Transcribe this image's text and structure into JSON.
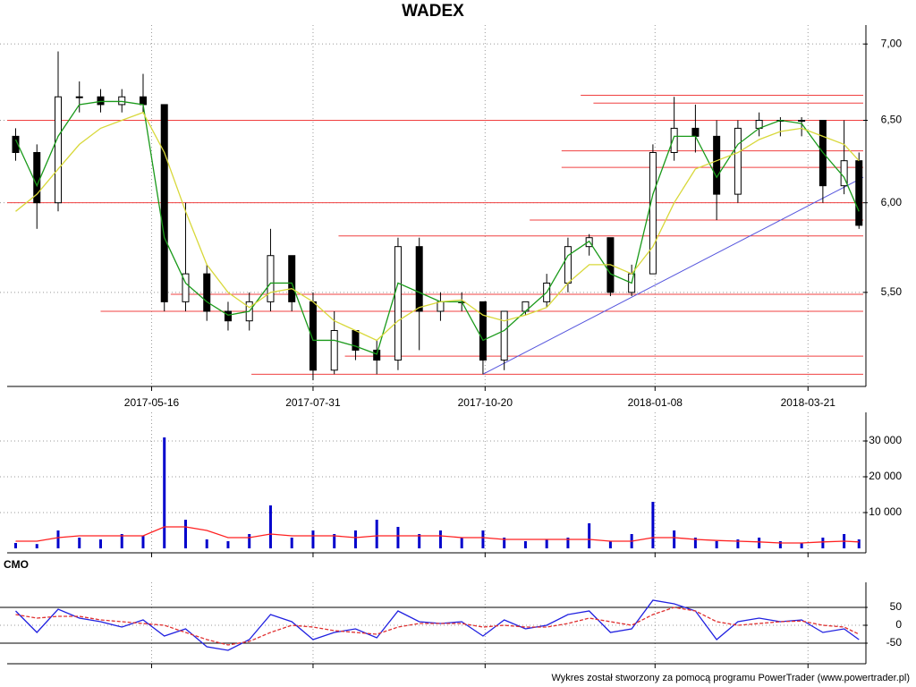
{
  "chart_data": [
    {
      "type": "candlestick",
      "title": "WADEX",
      "log_y": true,
      "grid": true,
      "xlim": [
        "2017-03-09",
        "2018-04-16"
      ],
      "xticks": [
        "2017-05-16",
        "2017-07-31",
        "2017-10-20",
        "2018-01-08",
        "2018-03-21"
      ],
      "ylim": [
        5.02,
        7.13
      ],
      "yticks": [
        {
          "value": 7,
          "label": "7,00"
        },
        {
          "value": 6.5,
          "label": "6,50"
        },
        {
          "value": 6,
          "label": "6,00"
        },
        {
          "value": 5.5,
          "label": "5,50"
        }
      ],
      "x": [
        "2017-03-13",
        "2017-03-23",
        "2017-04-02",
        "2017-04-12",
        "2017-04-22",
        "2017-05-02",
        "2017-05-12",
        "2017-05-22",
        "2017-06-01",
        "2017-06-11",
        "2017-06-21",
        "2017-07-01",
        "2017-07-11",
        "2017-07-21",
        "2017-07-31",
        "2017-08-10",
        "2017-08-20",
        "2017-08-30",
        "2017-09-09",
        "2017-09-19",
        "2017-09-29",
        "2017-10-09",
        "2017-10-19",
        "2017-10-29",
        "2017-11-08",
        "2017-11-18",
        "2017-11-28",
        "2017-12-08",
        "2017-12-18",
        "2017-12-28",
        "2018-01-07",
        "2018-01-17",
        "2018-01-27",
        "2018-02-06",
        "2018-02-16",
        "2018-02-26",
        "2018-03-08",
        "2018-03-18",
        "2018-03-28",
        "2018-04-07",
        "2018-04-14"
      ],
      "open": [
        6.4,
        6.3,
        6.0,
        6.65,
        6.65,
        6.6,
        6.65,
        6.6,
        5.45,
        5.6,
        5.4,
        5.35,
        5.45,
        5.7,
        5.45,
        5.1,
        5.3,
        5.2,
        5.15,
        5.75,
        5.4,
        5.45,
        5.45,
        5.15,
        5.4,
        5.45,
        5.55,
        5.75,
        5.8,
        5.5,
        5.6,
        6.3,
        6.45,
        6.4,
        6.05,
        6.45,
        6.5,
        6.5,
        6.5,
        6.1,
        6.25
      ],
      "high": [
        6.45,
        6.35,
        6.95,
        6.75,
        6.7,
        6.7,
        6.8,
        6.6,
        6.0,
        5.65,
        5.45,
        5.5,
        5.85,
        5.7,
        5.5,
        5.4,
        5.3,
        5.25,
        5.8,
        5.8,
        5.5,
        5.5,
        5.45,
        5.4,
        5.45,
        5.6,
        5.8,
        5.82,
        5.8,
        5.65,
        6.35,
        6.65,
        6.6,
        6.5,
        6.5,
        6.55,
        6.52,
        6.52,
        6.5,
        6.5,
        6.3
      ],
      "low": [
        6.25,
        5.85,
        5.95,
        6.55,
        6.55,
        6.55,
        6.55,
        5.4,
        5.4,
        5.35,
        5.3,
        5.3,
        5.4,
        5.4,
        5.05,
        5.08,
        5.15,
        5.08,
        5.1,
        5.2,
        5.35,
        5.4,
        5.08,
        5.1,
        5.38,
        5.42,
        5.5,
        5.7,
        5.48,
        5.48,
        5.6,
        6.25,
        6.3,
        5.9,
        6.0,
        6.4,
        6.4,
        6.4,
        6.0,
        6.05,
        5.85
      ],
      "close": [
        6.3,
        6.0,
        6.65,
        6.65,
        6.6,
        6.65,
        6.6,
        5.45,
        5.6,
        5.4,
        5.35,
        5.45,
        5.7,
        5.45,
        5.1,
        5.3,
        5.2,
        5.15,
        5.75,
        5.4,
        5.45,
        5.45,
        5.15,
        5.4,
        5.45,
        5.55,
        5.75,
        5.8,
        5.5,
        5.6,
        6.3,
        6.45,
        6.4,
        6.05,
        6.45,
        6.5,
        6.5,
        6.5,
        6.1,
        6.25,
        5.87
      ],
      "series": [
        {
          "color": "#1a9a1a",
          "values": [
            6.38,
            6.1,
            6.4,
            6.6,
            6.62,
            6.62,
            6.6,
            5.8,
            5.55,
            5.45,
            5.38,
            5.4,
            5.55,
            5.55,
            5.25,
            5.25,
            5.22,
            5.18,
            5.55,
            5.5,
            5.45,
            5.45,
            5.25,
            5.3,
            5.4,
            5.5,
            5.7,
            5.78,
            5.6,
            5.55,
            6.05,
            6.4,
            6.4,
            6.15,
            6.35,
            6.45,
            6.5,
            6.48,
            6.3,
            6.15,
            5.95
          ]
        },
        {
          "color": "#d8d83a",
          "values": [
            5.95,
            6.05,
            6.2,
            6.35,
            6.45,
            6.5,
            6.55,
            6.3,
            5.95,
            5.65,
            5.5,
            5.42,
            5.5,
            5.52,
            5.45,
            5.35,
            5.3,
            5.25,
            5.35,
            5.42,
            5.45,
            5.46,
            5.38,
            5.35,
            5.38,
            5.42,
            5.55,
            5.65,
            5.65,
            5.6,
            5.75,
            6.0,
            6.2,
            6.25,
            6.3,
            6.38,
            6.43,
            6.45,
            6.4,
            6.35,
            6.25
          ]
        }
      ],
      "hline_color": "#f04040",
      "hlines": [
        {
          "value": 6.66,
          "from": "2017-12-04"
        },
        {
          "value": 6.61,
          "from": "2017-12-10"
        },
        {
          "value": 6.5,
          "from": "2017-03-09"
        },
        {
          "value": 6.31,
          "from": "2017-11-25"
        },
        {
          "value": 6.21,
          "from": "2017-11-25"
        },
        {
          "value": 6.0,
          "from": "2017-03-09"
        },
        {
          "value": 5.9,
          "from": "2017-11-10"
        },
        {
          "value": 5.81,
          "from": "2017-08-12"
        },
        {
          "value": 5.49,
          "from": "2017-05-25"
        },
        {
          "value": 5.4,
          "from": "2017-04-22"
        },
        {
          "value": 5.17,
          "from": "2017-08-15"
        },
        {
          "value": 5.08,
          "from": "2017-07-02"
        }
      ],
      "trendline": {
        "color": "#5555dd",
        "x": [
          "2017-10-19",
          "2018-04-16"
        ],
        "y": [
          5.08,
          6.15
        ]
      }
    },
    {
      "type": "bar",
      "grid": true,
      "xlim": [
        "2017-03-09",
        "2018-04-16"
      ],
      "ylim": [
        0,
        36000
      ],
      "yticks": [
        {
          "value": 30000,
          "label": "30 000"
        },
        {
          "value": 20000,
          "label": "20 000"
        },
        {
          "value": 10000,
          "label": "10 000"
        }
      ],
      "x": [
        "2017-03-13",
        "2017-03-23",
        "2017-04-02",
        "2017-04-12",
        "2017-04-22",
        "2017-05-02",
        "2017-05-12",
        "2017-05-22",
        "2017-06-01",
        "2017-06-11",
        "2017-06-21",
        "2017-07-01",
        "2017-07-11",
        "2017-07-21",
        "2017-07-31",
        "2017-08-10",
        "2017-08-20",
        "2017-08-30",
        "2017-09-09",
        "2017-09-19",
        "2017-09-29",
        "2017-10-09",
        "2017-10-19",
        "2017-10-29",
        "2017-11-08",
        "2017-11-18",
        "2017-11-28",
        "2017-12-08",
        "2017-12-18",
        "2017-12-28",
        "2018-01-07",
        "2018-01-17",
        "2018-01-27",
        "2018-02-06",
        "2018-02-16",
        "2018-02-26",
        "2018-03-08",
        "2018-03-18",
        "2018-03-28",
        "2018-04-07",
        "2018-04-14"
      ],
      "series": [
        {
          "type": "bar",
          "color": "#0000cc",
          "values": [
            1500,
            1200,
            5000,
            3000,
            2500,
            4000,
            3500,
            31000,
            8000,
            2500,
            2000,
            4000,
            12000,
            3000,
            5000,
            4000,
            5000,
            8000,
            6000,
            4000,
            5000,
            3000,
            5000,
            3000,
            2000,
            2500,
            3000,
            7000,
            2000,
            4000,
            13000,
            5000,
            3000,
            2000,
            2500,
            3000,
            2000,
            1500,
            3000,
            4000,
            2500
          ]
        },
        {
          "type": "line",
          "color": "#ff2020",
          "values": [
            2000,
            2000,
            3000,
            3500,
            3500,
            3500,
            3500,
            6000,
            6000,
            5000,
            3000,
            3000,
            4000,
            3500,
            3500,
            3500,
            3000,
            3500,
            3500,
            3500,
            3500,
            3000,
            3000,
            2500,
            2500,
            2500,
            2500,
            2500,
            2000,
            2000,
            3000,
            3000,
            2500,
            2200,
            2000,
            1800,
            1500,
            1500,
            1800,
            2000,
            1800
          ]
        }
      ]
    },
    {
      "type": "line",
      "title": "CMO",
      "grid": true,
      "xlim": [
        "2017-03-09",
        "2018-04-16"
      ],
      "ylim": [
        -100,
        100
      ],
      "yticks": [
        50,
        0,
        -50
      ],
      "levels": [
        50,
        -50
      ],
      "x": [
        "2017-03-13",
        "2017-03-23",
        "2017-04-02",
        "2017-04-12",
        "2017-04-22",
        "2017-05-02",
        "2017-05-12",
        "2017-05-22",
        "2017-06-01",
        "2017-06-11",
        "2017-06-21",
        "2017-07-01",
        "2017-07-11",
        "2017-07-21",
        "2017-07-31",
        "2017-08-10",
        "2017-08-20",
        "2017-08-30",
        "2017-09-09",
        "2017-09-19",
        "2017-09-29",
        "2017-10-09",
        "2017-10-19",
        "2017-10-29",
        "2017-11-08",
        "2017-11-18",
        "2017-11-28",
        "2017-12-08",
        "2017-12-18",
        "2017-12-28",
        "2018-01-07",
        "2018-01-17",
        "2018-01-27",
        "2018-02-06",
        "2018-02-16",
        "2018-02-26",
        "2018-03-08",
        "2018-03-18",
        "2018-03-28",
        "2018-04-07",
        "2018-04-14"
      ],
      "series": [
        {
          "color": "#2020e0",
          "values": [
            40,
            -20,
            45,
            20,
            10,
            -5,
            15,
            -30,
            -10,
            -60,
            -70,
            -40,
            30,
            10,
            -40,
            -20,
            -10,
            -35,
            40,
            10,
            5,
            10,
            -30,
            15,
            -10,
            0,
            30,
            40,
            -20,
            -10,
            70,
            60,
            40,
            -40,
            10,
            20,
            10,
            15,
            -20,
            -10,
            -40
          ]
        },
        {
          "color": "#e03030",
          "dashed": true,
          "values": [
            30,
            20,
            25,
            25,
            15,
            10,
            5,
            0,
            -20,
            -40,
            -55,
            -45,
            -20,
            0,
            -5,
            -15,
            -20,
            -25,
            -5,
            5,
            5,
            5,
            -5,
            0,
            -5,
            -5,
            5,
            20,
            10,
            0,
            30,
            50,
            40,
            10,
            0,
            5,
            10,
            12,
            0,
            -5,
            -25
          ]
        }
      ]
    }
  ],
  "footer": "Wykres został stworzony za pomocą programu PowerTrader (www.powertrader.pl)"
}
